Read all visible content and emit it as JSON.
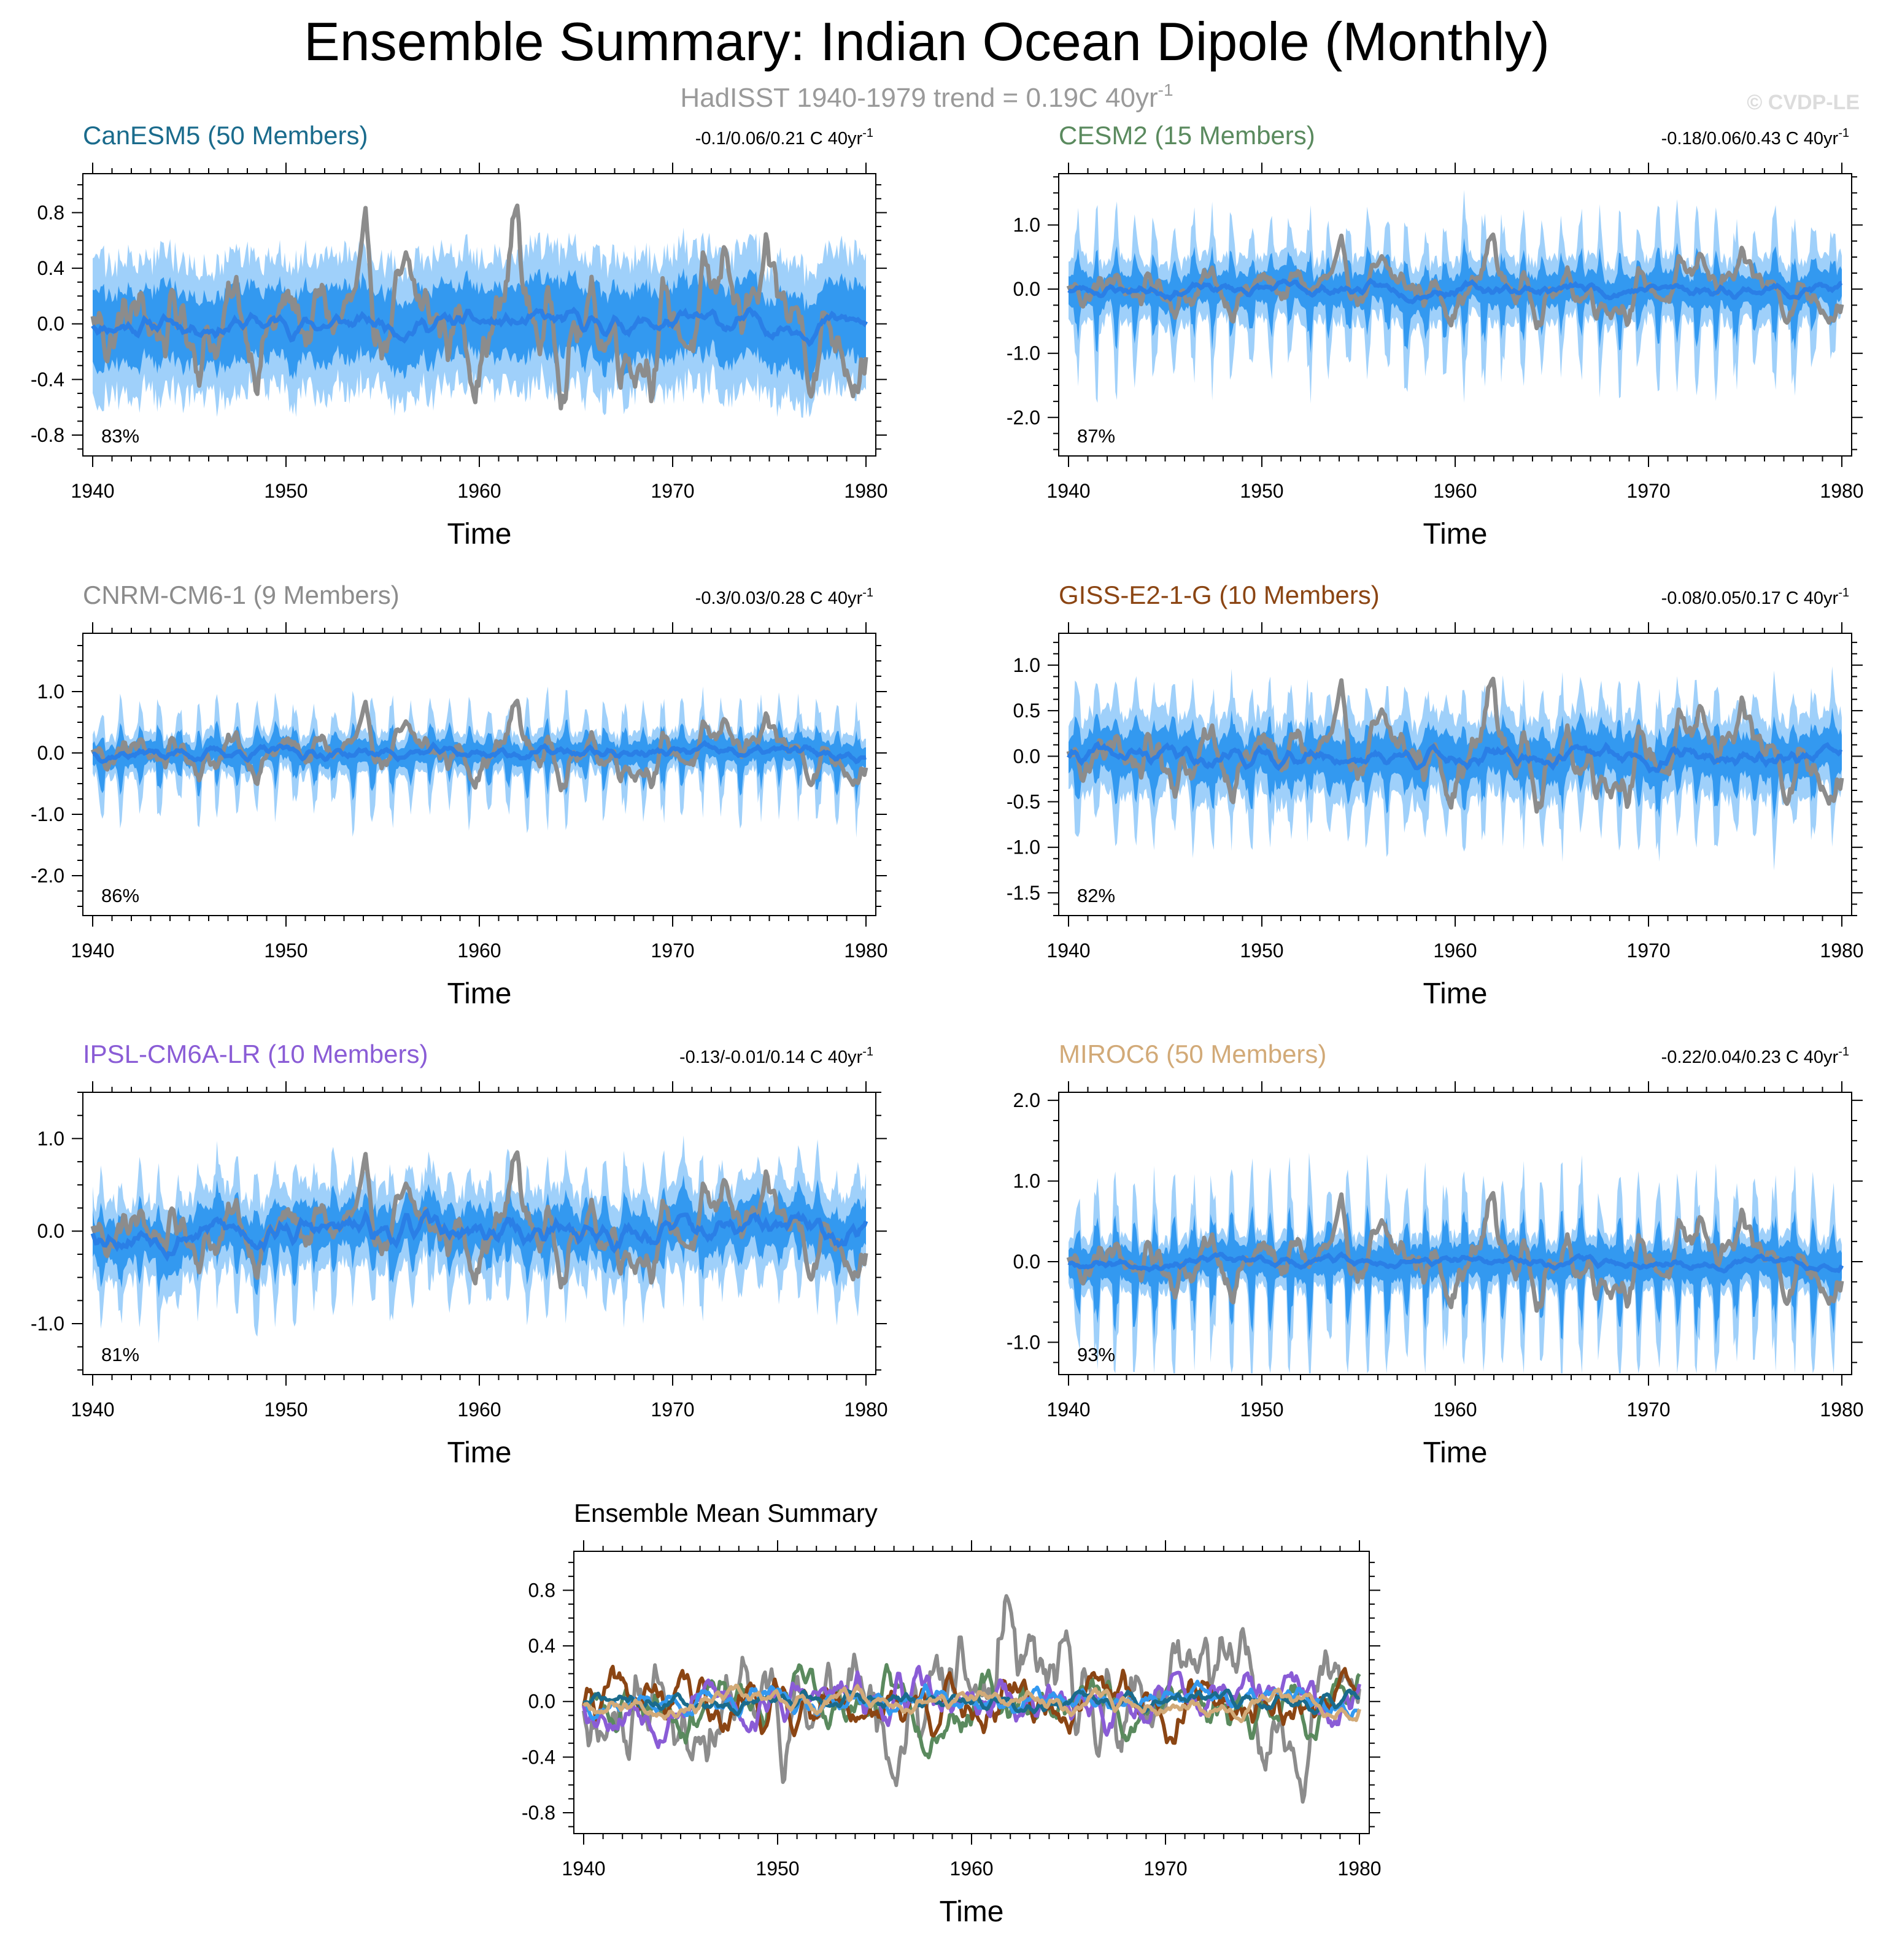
{
  "title": "Ensemble Summary: Indian Ocean Dipole (Monthly)",
  "subtitle": "HadISST 1940-1979 trend = 0.19C 40yr",
  "subtitle_sup": "-1",
  "copyright": "© CVDP-LE",
  "colors": {
    "observed": "#8c8c8c",
    "spread_outer": "#9fd0fa",
    "spread_inner": "#3399f0",
    "ensemble_mean": "#2a7fe6"
  },
  "chart_data": [
    {
      "type": "area",
      "title": "CanESM5 (50 Members)",
      "title_color": "#1a6b8c",
      "trend_text": "-0.1/0.06/0.21 C 40yr",
      "trend_sup": "-1",
      "percent": "83%",
      "xlabel": "Time",
      "xlim": [
        1940,
        1980
      ],
      "xticks": [
        "1940",
        "1950",
        "1960",
        "1970",
        "1980"
      ],
      "ylim": [
        -0.95,
        1.08
      ],
      "yticks": [
        -0.8,
        -0.4,
        0.0,
        0.4,
        0.8
      ],
      "ytick_labels": [
        "-0.8",
        "-0.4",
        "0.0",
        "0.4",
        "0.8"
      ],
      "spread_outer": 0.45,
      "spread_inner": 0.24,
      "season_amp": 0.05,
      "obs_amp": 0.3,
      "mean_amp": 0.06,
      "seed": 11
    },
    {
      "type": "area",
      "title": "CESM2 (15 Members)",
      "title_color": "#5a8a5e",
      "trend_text": "-0.18/0.06/0.43 C 40yr",
      "trend_sup": "-1",
      "percent": "87%",
      "xlabel": "Time",
      "xlim": [
        1940,
        1980
      ],
      "xticks": [
        "1940",
        "1950",
        "1960",
        "1970",
        "1980"
      ],
      "ylim": [
        -2.6,
        1.8
      ],
      "yticks": [
        -2.0,
        -1.0,
        0.0,
        1.0
      ],
      "ytick_labels": [
        "-2.0",
        "-1.0",
        "0.0",
        "1.0"
      ],
      "spread_outer": 0.45,
      "spread_inner": 0.22,
      "season_amp": 1.0,
      "obs_amp": 0.3,
      "mean_amp": 0.08,
      "seed": 23
    },
    {
      "type": "area",
      "title": "CNRM-CM6-1 (9 Members)",
      "title_color": "#8c8c8c",
      "trend_text": "-0.3/0.03/0.28 C 40yr",
      "trend_sup": "-1",
      "percent": "86%",
      "xlabel": "Time",
      "xlim": [
        1940,
        1980
      ],
      "xticks": [
        "1940",
        "1950",
        "1960",
        "1970",
        "1980"
      ],
      "ylim": [
        -2.65,
        1.95
      ],
      "yticks": [
        -2.0,
        -1.0,
        0.0,
        1.0
      ],
      "ytick_labels": [
        "-2.0",
        "-1.0",
        "0.0",
        "1.0"
      ],
      "spread_outer": 0.3,
      "spread_inner": 0.16,
      "season_amp": 0.8,
      "obs_amp": 0.3,
      "mean_amp": 0.08,
      "seed": 37
    },
    {
      "type": "area",
      "title": "GISS-E2-1-G (10 Members)",
      "title_color": "#8b4513",
      "trend_text": "-0.08/0.05/0.17 C 40yr",
      "trend_sup": "-1",
      "percent": "82%",
      "xlabel": "Time",
      "xlim": [
        1940,
        1980
      ],
      "xticks": [
        "1940",
        "1950",
        "1960",
        "1970",
        "1980"
      ],
      "ylim": [
        -1.75,
        1.35
      ],
      "yticks": [
        -1.5,
        -1.0,
        -0.5,
        0.0,
        0.5,
        1.0
      ],
      "ytick_labels": [
        "-1.5",
        "-1.0",
        "-0.5",
        "0.0",
        "0.5",
        "1.0"
      ],
      "spread_outer": 0.4,
      "spread_inner": 0.2,
      "season_amp": 0.55,
      "obs_amp": 0.3,
      "mean_amp": 0.08,
      "seed": 41
    },
    {
      "type": "area",
      "title": "IPSL-CM6A-LR (10 Members)",
      "title_color": "#8a5cd6",
      "trend_text": "-0.13/-0.01/0.14 C 40yr",
      "trend_sup": "-1",
      "percent": "81%",
      "xlabel": "Time",
      "xlim": [
        1940,
        1980
      ],
      "xticks": [
        "1940",
        "1950",
        "1960",
        "1970",
        "1980"
      ],
      "ylim": [
        -1.55,
        1.5
      ],
      "yticks": [
        -1.0,
        0.0,
        1.0
      ],
      "ytick_labels": [
        "-1.0",
        "0.0",
        "1.0"
      ],
      "spread_outer": 0.4,
      "spread_inner": 0.2,
      "season_amp": 0.45,
      "obs_amp": 0.3,
      "mean_amp": 0.12,
      "seed": 53
    },
    {
      "type": "area",
      "title": "MIROC6 (50 Members)",
      "title_color": "#d2aa78",
      "trend_text": "-0.22/0.04/0.23 C 40yr",
      "trend_sup": "-1",
      "percent": "93%",
      "xlabel": "Time",
      "xlim": [
        1940,
        1980
      ],
      "xticks": [
        "1940",
        "1950",
        "1960",
        "1970",
        "1980"
      ],
      "ylim": [
        -1.4,
        2.1
      ],
      "yticks": [
        -1.0,
        0.0,
        1.0,
        2.0
      ],
      "ytick_labels": [
        "-1.0",
        "0.0",
        "1.0",
        "2.0"
      ],
      "spread_outer": 0.3,
      "spread_inner": 0.18,
      "season_amp": 1.1,
      "obs_amp": 0.3,
      "mean_amp": 0.05,
      "seed": 67
    },
    {
      "type": "line",
      "title": "Ensemble Mean Summary",
      "title_color": "#000000",
      "xlabel": "Time",
      "xlim": [
        1940,
        1980
      ],
      "xticks": [
        "1940",
        "1950",
        "1960",
        "1970",
        "1980"
      ],
      "ylim": [
        -0.95,
        1.08
      ],
      "yticks": [
        -0.8,
        -0.4,
        0.0,
        0.4,
        0.8
      ],
      "ytick_labels": [
        "-0.8",
        "-0.4",
        "0.0",
        "0.4",
        "0.8"
      ],
      "series": [
        {
          "name": "HadISST",
          "color": "#8c8c8c",
          "amp": 0.3,
          "seed": 11
        },
        {
          "name": "CESM2",
          "color": "#5a8a5e",
          "amp": 0.16,
          "seed": 23
        },
        {
          "name": "GISS-E2-1-G",
          "color": "#8b4513",
          "amp": 0.15,
          "seed": 41
        },
        {
          "name": "IPSL-CM6A-LR",
          "color": "#8a5cd6",
          "amp": 0.14,
          "seed": 53
        },
        {
          "name": "CNRM-CM6-1",
          "color": "#3399f0",
          "amp": 0.07,
          "seed": 37
        },
        {
          "name": "CanESM5",
          "color": "#1a6b8c",
          "amp": 0.05,
          "seed": 71
        },
        {
          "name": "MIROC6",
          "color": "#d2aa78",
          "amp": 0.06,
          "seed": 67
        }
      ]
    }
  ]
}
